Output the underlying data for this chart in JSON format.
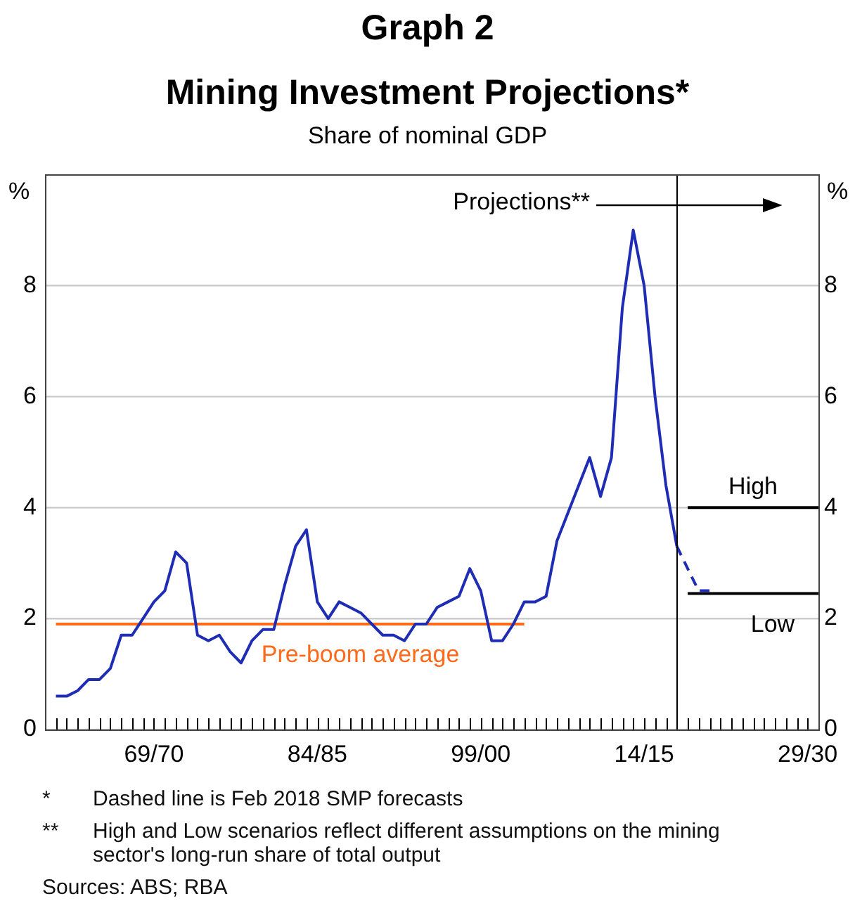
{
  "chart_data": {
    "type": "line",
    "title": "Graph 2",
    "subtitle": "Mining Investment Projections*",
    "ylabel": "%",
    "y2label": "%",
    "annotations": [
      "Share of nominal GDP",
      "*\tDashed line is Feb 2018 SMP forecasts",
      "**\tHigh and Low scenarios reflect different assumptions on the mining sector's long-run share of total output",
      "Sources: ABS; RBA"
    ],
    "categories": [
      null,
      null,
      null,
      null,
      null,
      null,
      null,
      null,
      null,
      null,
      "69/70",
      null,
      null,
      null,
      null,
      null,
      null,
      null,
      null,
      null,
      null,
      null,
      null,
      null,
      null,
      "84/85",
      null,
      null,
      null,
      null,
      null,
      null,
      null,
      null,
      null,
      null,
      null,
      null,
      null,
      null,
      "99/00",
      null,
      null,
      null,
      null,
      null,
      null,
      null,
      null,
      null,
      null,
      null,
      null,
      null,
      null,
      "14/15",
      null,
      null,
      null,
      null,
      null,
      null,
      null,
      null,
      null,
      null,
      null,
      null,
      null,
      null,
      "29/30",
      null
    ],
    "ylim": [
      0,
      10
    ],
    "yticks": [
      0,
      2,
      4,
      6,
      8
    ],
    "y2lim": [
      0,
      10
    ],
    "y2ticks": [
      0,
      2,
      4,
      6,
      8
    ],
    "grid": "y",
    "marker": "none",
    "ref_lines": [
      {
        "axis": "x",
        "label": "Projections**",
        "color": "#000000"
      }
    ],
    "series": [
      {
        "color": "#1f2db4",
        "line_style": "solid",
        "values": [
          null,
          0.6,
          0.6,
          0.7,
          0.9,
          0.9,
          1.1,
          1.7,
          1.7,
          2.0,
          2.3,
          2.5,
          3.2,
          3.0,
          1.7,
          1.6,
          1.7,
          1.4,
          1.2,
          1.6,
          1.8,
          1.8,
          2.6,
          3.3,
          3.6,
          2.3,
          2.0,
          2.3,
          2.2,
          2.1,
          1.9,
          1.7,
          1.7,
          1.6,
          1.9,
          1.9,
          2.2,
          2.3,
          2.4,
          2.9,
          2.5,
          1.6,
          1.6,
          1.9,
          2.3,
          2.3,
          2.4,
          3.4,
          3.9,
          4.4,
          4.9,
          4.2,
          4.9,
          7.6,
          9.0,
          8.0,
          6.0,
          4.4,
          3.3,
          null,
          null,
          null,
          null,
          null,
          null,
          null,
          null,
          null,
          null,
          null,
          null,
          null
        ]
      },
      {
        "color": "#1f2db4",
        "line_style": "dashed",
        "values": [
          null,
          null,
          null,
          null,
          null,
          null,
          null,
          null,
          null,
          null,
          null,
          null,
          null,
          null,
          null,
          null,
          null,
          null,
          null,
          null,
          null,
          null,
          null,
          null,
          null,
          null,
          null,
          null,
          null,
          null,
          null,
          null,
          null,
          null,
          null,
          null,
          null,
          null,
          null,
          null,
          null,
          null,
          null,
          null,
          null,
          null,
          null,
          null,
          null,
          null,
          null,
          null,
          null,
          null,
          null,
          null,
          null,
          null,
          3.3,
          2.9,
          2.5,
          2.5,
          null,
          null,
          null,
          null,
          null,
          null,
          null,
          null,
          null,
          null
        ]
      },
      {
        "name": "Pre-boom average",
        "color": "#ff6a1a",
        "line_style": "solid",
        "values": [
          null,
          1.9,
          1.9,
          1.9,
          1.9,
          1.9,
          1.9,
          1.9,
          1.9,
          1.9,
          1.9,
          1.9,
          1.9,
          1.9,
          1.9,
          1.9,
          1.9,
          1.9,
          1.9,
          1.9,
          1.9,
          1.9,
          1.9,
          1.9,
          1.9,
          1.9,
          1.9,
          1.9,
          1.9,
          1.9,
          1.9,
          1.9,
          1.9,
          1.9,
          1.9,
          1.9,
          1.9,
          1.9,
          1.9,
          1.9,
          1.9,
          1.9,
          1.9,
          1.9,
          1.9,
          null,
          null,
          null,
          null,
          null,
          null,
          null,
          null,
          null,
          null,
          null,
          null,
          null,
          null,
          null,
          null,
          null,
          null,
          null,
          null,
          null,
          null,
          null,
          null,
          null,
          null,
          null
        ]
      },
      {
        "name": "High",
        "color": "#000000",
        "line_style": "solid",
        "values": [
          null,
          null,
          null,
          null,
          null,
          null,
          null,
          null,
          null,
          null,
          null,
          null,
          null,
          null,
          null,
          null,
          null,
          null,
          null,
          null,
          null,
          null,
          null,
          null,
          null,
          null,
          null,
          null,
          null,
          null,
          null,
          null,
          null,
          null,
          null,
          null,
          null,
          null,
          null,
          null,
          null,
          null,
          null,
          null,
          null,
          null,
          null,
          null,
          null,
          null,
          null,
          null,
          null,
          null,
          null,
          null,
          null,
          null,
          null,
          4.0,
          4.0,
          4.0,
          4.0,
          4.0,
          4.0,
          4.0,
          4.0,
          4.0,
          4.0,
          4.0,
          4.0,
          4.0
        ]
      },
      {
        "name": "Low",
        "color": "#000000",
        "line_style": "solid",
        "values": [
          null,
          null,
          null,
          null,
          null,
          null,
          null,
          null,
          null,
          null,
          null,
          null,
          null,
          null,
          null,
          null,
          null,
          null,
          null,
          null,
          null,
          null,
          null,
          null,
          null,
          null,
          null,
          null,
          null,
          null,
          null,
          null,
          null,
          null,
          null,
          null,
          null,
          null,
          null,
          null,
          null,
          null,
          null,
          null,
          null,
          null,
          null,
          null,
          null,
          null,
          null,
          null,
          null,
          null,
          null,
          null,
          null,
          null,
          null,
          2.45,
          2.45,
          2.45,
          2.45,
          2.45,
          2.45,
          2.45,
          2.45,
          2.45,
          2.45,
          2.45,
          2.45,
          2.45
        ]
      }
    ]
  }
}
